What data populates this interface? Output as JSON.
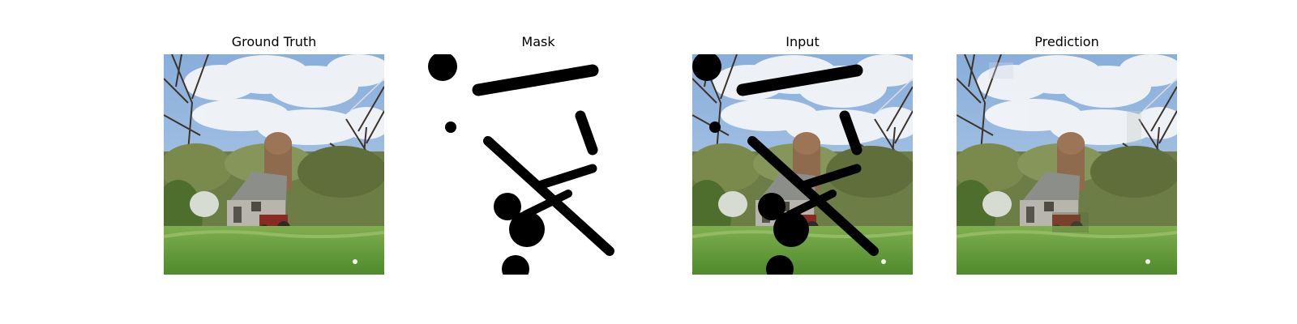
{
  "panels": [
    {
      "title": "Ground Truth"
    },
    {
      "title": "Mask"
    },
    {
      "title": "Input"
    },
    {
      "title": "Prediction"
    }
  ]
}
